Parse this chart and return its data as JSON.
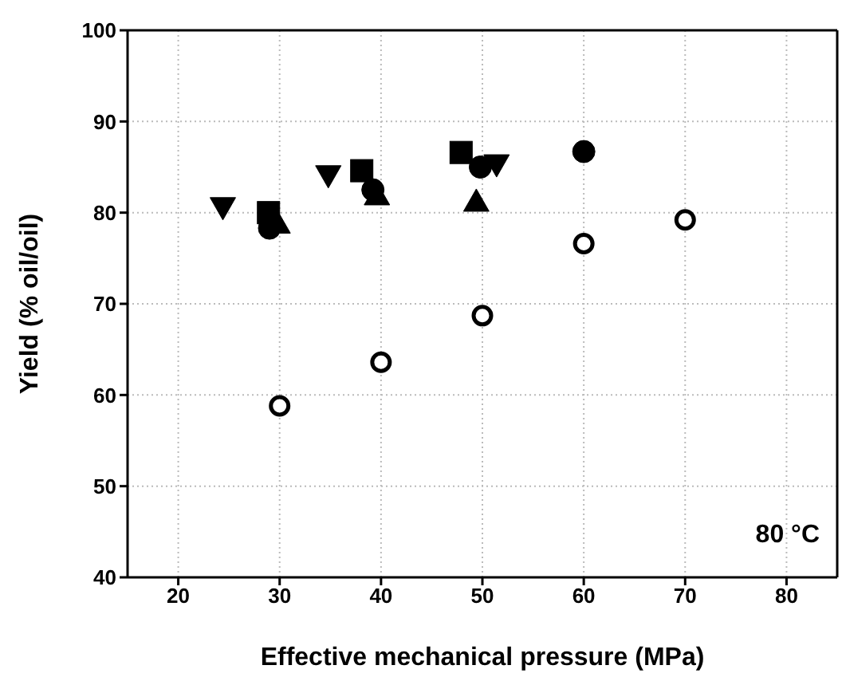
{
  "chart_data": {
    "type": "scatter",
    "xlabel": "Effective mechanical pressure (MPa)",
    "ylabel": "Yield (% oil/oil)",
    "xlim": [
      15,
      85
    ],
    "xticks": [
      20,
      30,
      40,
      50,
      60,
      70,
      80
    ],
    "ylim": [
      40,
      100
    ],
    "yticks": [
      40,
      50,
      60,
      70,
      80,
      90,
      100
    ],
    "grid": true,
    "annotations": [
      "80 °C"
    ],
    "series": [
      {
        "marker": "square",
        "color": "#000000",
        "x": [
          28.9,
          38.1,
          47.9
        ],
        "values": [
          80.0,
          84.6,
          86.6
        ]
      },
      {
        "marker": "circle",
        "color": "#000000",
        "x": [
          29.0,
          39.2,
          49.8,
          60.0
        ],
        "values": [
          78.3,
          82.5,
          85.0,
          86.7
        ]
      },
      {
        "marker": "triangle",
        "color": "#000000",
        "x": [
          29.8,
          39.6,
          49.4
        ],
        "values": [
          78.8,
          81.9,
          81.2
        ]
      },
      {
        "marker": "triangle-down",
        "color": "#000000",
        "x": [
          24.4,
          34.8,
          51.4
        ],
        "values": [
          80.6,
          84.1,
          85.3
        ]
      },
      {
        "marker": "circle",
        "color": "#ffffff",
        "x": [
          30,
          40,
          50,
          60,
          70
        ],
        "values": [
          58.8,
          63.6,
          68.7,
          76.6,
          79.2
        ]
      }
    ]
  }
}
